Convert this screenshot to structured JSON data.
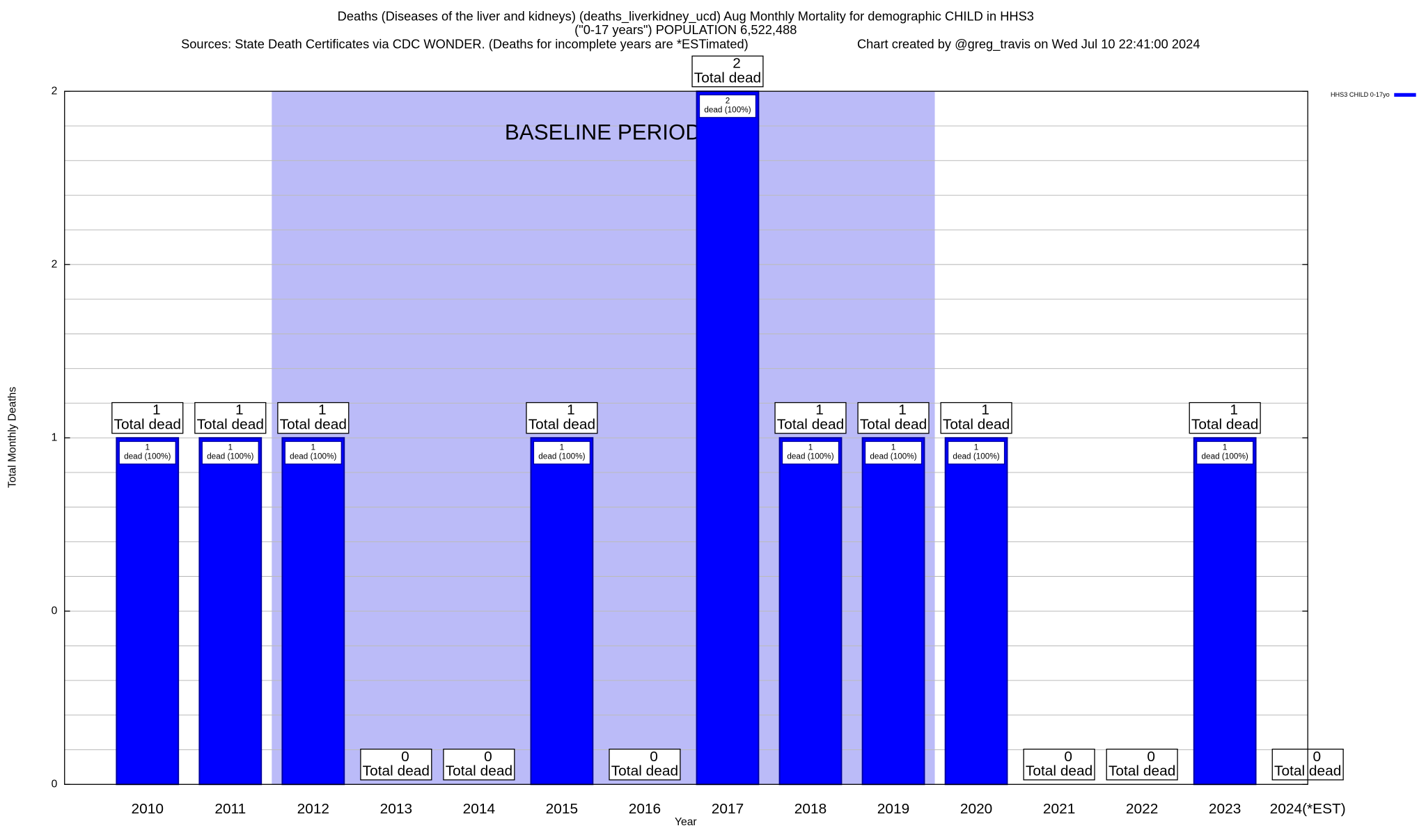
{
  "chart_data": {
    "type": "bar",
    "title": "Deaths (Diseases of the liver and kidneys) (deaths_liverkidney_ucd) Aug Monthly Mortality for demographic CHILD in HHS3",
    "subtitle": "(\"0-17 years\") POPULATION 6,522,488",
    "source": "Sources: State Death Certificates via CDC WONDER. (Deaths for incomplete years are *ESTimated)",
    "credit": "Chart created by @greg_travis on Wed Jul 10 22:41:00 2024",
    "x_label": "Year",
    "y_label": "Total Monthly Deaths",
    "categories": [
      "2010",
      "2011",
      "2012",
      "2013",
      "2014",
      "2015",
      "2016",
      "2017",
      "2018",
      "2019",
      "2020",
      "2021",
      "2022",
      "2023",
      "2024(*EST)"
    ],
    "series": [
      {
        "name": "HHS3 CHILD 0-17yo",
        "color": "#0000ff",
        "values": [
          1,
          1,
          1,
          0,
          0,
          1,
          0,
          2,
          1,
          1,
          1,
          0,
          0,
          1,
          0
        ]
      }
    ],
    "total_label": "Total dead",
    "share_label": "dead (100%)",
    "baseline": {
      "label": "BASELINE PERIOD",
      "start": "2012",
      "end": "2019",
      "color": "#bbbbf8"
    },
    "ylim": [
      0,
      2
    ],
    "yticks": [
      0,
      {
        "value": 0.5,
        "label": "0"
      },
      1,
      {
        "value": 1.5,
        "label": "2"
      },
      2
    ],
    "yticks_minor": [
      0.1,
      0.2,
      0.3,
      0.4,
      0.6,
      0.7,
      0.8,
      0.9,
      1.1,
      1.2,
      1.3,
      1.4,
      1.6,
      1.7,
      1.8,
      1.9
    ],
    "grid": true,
    "legend": "top-right"
  }
}
